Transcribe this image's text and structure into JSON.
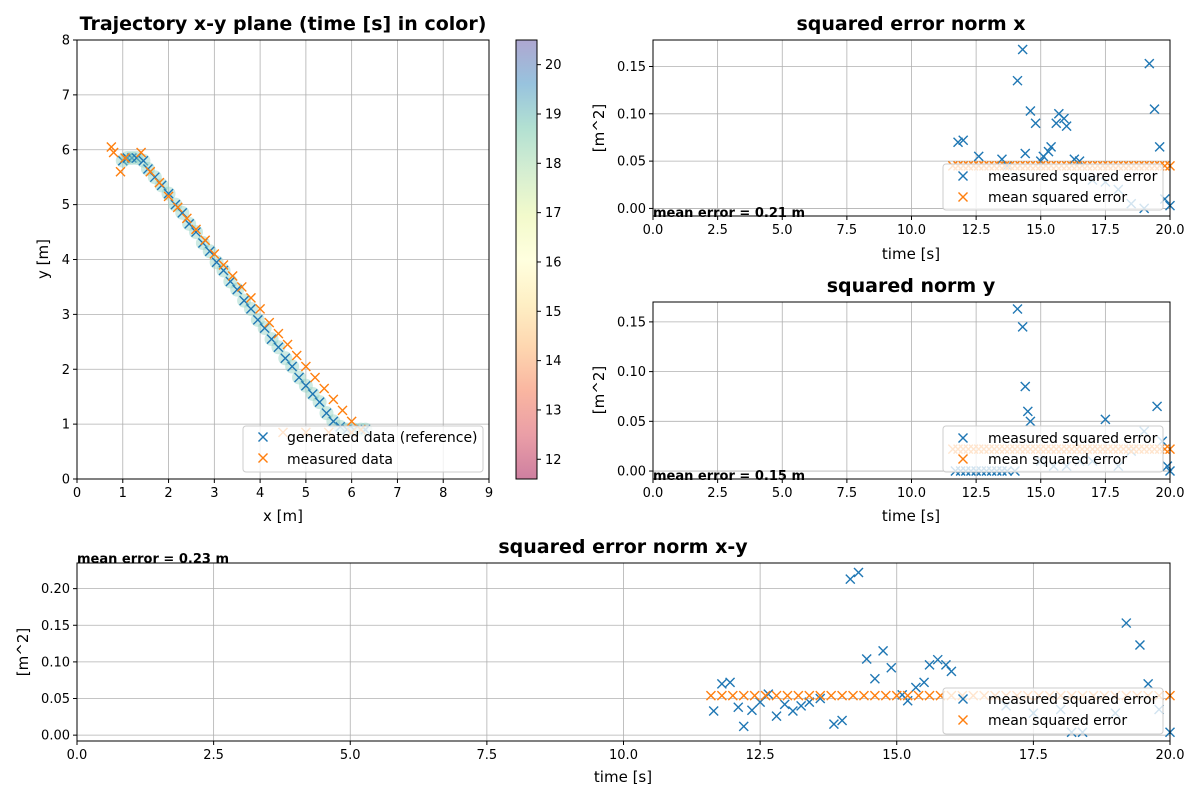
{
  "colors": {
    "reference": "#1f77b4",
    "measured": "#ff7f0e",
    "grid": "#b0b0b0"
  },
  "chart_data": [
    {
      "id": "traj",
      "type": "scatter",
      "title": "Trajectory x-y plane  (time [s] in color)",
      "xlabel": "x [m]",
      "ylabel": "y [m]",
      "xlim": [
        0,
        9
      ],
      "ylim": [
        0,
        8
      ],
      "xticks": [
        "0",
        "1",
        "2",
        "3",
        "4",
        "5",
        "6",
        "7",
        "8",
        "9"
      ],
      "yticks": [
        "0",
        "1",
        "2",
        "3",
        "4",
        "5",
        "6",
        "7",
        "8"
      ],
      "grid": true,
      "legend_placement": "lower-right",
      "legend": [
        "generated data (reference)",
        "measured data"
      ],
      "colorbar": {
        "label": "",
        "range": [
          11.6,
          20.5
        ],
        "ticks": [
          "12",
          "13",
          "14",
          "15",
          "16",
          "17",
          "18",
          "19",
          "20"
        ],
        "colormap": "Spectral"
      },
      "series": [
        {
          "name": "generated data (reference)",
          "marker": "x",
          "x": [
            1.0,
            1.1,
            1.2,
            1.3,
            1.45,
            1.55,
            1.7,
            1.85,
            2.0,
            2.15,
            2.3,
            2.45,
            2.6,
            2.75,
            2.9,
            3.05,
            3.2,
            3.35,
            3.5,
            3.65,
            3.8,
            3.95,
            4.1,
            4.25,
            4.4,
            4.55,
            4.7,
            4.85,
            5.0,
            5.15,
            5.3,
            5.45,
            5.6,
            5.75,
            5.9,
            6.05,
            6.2,
            6.3
          ],
          "y": [
            5.8,
            5.85,
            5.85,
            5.85,
            5.8,
            5.65,
            5.5,
            5.35,
            5.2,
            5.0,
            4.85,
            4.65,
            4.5,
            4.3,
            4.15,
            3.95,
            3.8,
            3.6,
            3.45,
            3.25,
            3.1,
            2.9,
            2.75,
            2.55,
            2.4,
            2.2,
            2.05,
            1.85,
            1.7,
            1.55,
            1.4,
            1.2,
            1.05,
            0.95,
            0.9,
            0.9,
            0.9,
            0.9
          ]
        },
        {
          "name": "measured data",
          "marker": "x",
          "x": [
            0.75,
            0.8,
            0.95,
            1.05,
            1.4,
            1.6,
            1.8,
            2.0,
            2.2,
            2.4,
            2.6,
            2.8,
            3.0,
            3.2,
            3.4,
            3.6,
            3.8,
            4.0,
            4.2,
            4.4,
            4.6,
            4.8,
            5.0,
            5.2,
            5.4,
            5.6,
            5.8,
            6.0,
            6.2,
            4.5,
            5.0,
            5.5,
            6.0
          ],
          "y": [
            6.05,
            5.95,
            5.6,
            5.85,
            5.95,
            5.6,
            5.4,
            5.15,
            4.95,
            4.75,
            4.55,
            4.35,
            4.1,
            3.9,
            3.7,
            3.5,
            3.3,
            3.1,
            2.85,
            2.65,
            2.45,
            2.25,
            2.05,
            1.85,
            1.65,
            1.45,
            1.25,
            1.05,
            0.9,
            0.85,
            0.85,
            0.85,
            0.85
          ]
        }
      ]
    },
    {
      "id": "errx",
      "type": "scatter",
      "title": "squared error norm  x",
      "xlabel": "time [s]",
      "ylabel": "[m^2]",
      "xlim": [
        0,
        20
      ],
      "ylim": [
        -0.008,
        0.178
      ],
      "xticks": [
        "0.0",
        "2.5",
        "5.0",
        "7.5",
        "10.0",
        "12.5",
        "15.0",
        "17.5",
        "20.0"
      ],
      "xtick_values": [
        0,
        2.5,
        5,
        7.5,
        10,
        12.5,
        15,
        17.5,
        20
      ],
      "yticks": [
        "0.00",
        "0.05",
        "0.10",
        "0.15"
      ],
      "ytick_values": [
        0,
        0.05,
        0.1,
        0.15
      ],
      "grid": true,
      "legend_placement": "lower-right",
      "legend": [
        "measured squared error",
        "mean squared error"
      ],
      "annotation": "mean error = 0.21 m",
      "series": [
        {
          "name": "measured squared error",
          "marker": "x",
          "x": [
            11.8,
            12.0,
            12.6,
            13.5,
            13.7,
            14.1,
            14.3,
            14.4,
            14.6,
            14.8,
            15.0,
            15.1,
            15.3,
            15.4,
            15.6,
            15.7,
            15.9,
            16.0,
            16.3,
            16.5,
            17.0,
            17.5,
            18.0,
            18.5,
            19.0,
            19.2,
            19.4,
            19.6,
            19.8,
            20.0
          ],
          "y": [
            0.07,
            0.072,
            0.055,
            0.052,
            0.045,
            0.135,
            0.168,
            0.058,
            0.103,
            0.09,
            0.05,
            0.055,
            0.06,
            0.065,
            0.09,
            0.1,
            0.095,
            0.087,
            0.052,
            0.05,
            0.03,
            0.028,
            0.02,
            0.005,
            0.0,
            0.153,
            0.105,
            0.065,
            0.01,
            0.003
          ]
        },
        {
          "name": "mean squared error",
          "marker": "x",
          "x": [
            11.6,
            11.8,
            12.0,
            12.2,
            12.4,
            12.6,
            12.8,
            13.0,
            13.2,
            13.4,
            13.6,
            13.8,
            14.0,
            14.2,
            14.4,
            14.6,
            14.8,
            15.0,
            15.2,
            15.4,
            15.6,
            15.8,
            16.0,
            16.2,
            16.4,
            16.6,
            16.8,
            17.0,
            17.2,
            17.4,
            17.6,
            17.8,
            18.0,
            18.2,
            18.4,
            18.6,
            18.8,
            19.0,
            19.2,
            19.4,
            19.6,
            19.8,
            20.0
          ],
          "y": [
            0.045,
            0.045,
            0.045,
            0.045,
            0.045,
            0.045,
            0.045,
            0.045,
            0.045,
            0.045,
            0.045,
            0.045,
            0.045,
            0.045,
            0.045,
            0.045,
            0.045,
            0.045,
            0.045,
            0.045,
            0.045,
            0.045,
            0.045,
            0.045,
            0.045,
            0.045,
            0.045,
            0.045,
            0.045,
            0.045,
            0.045,
            0.045,
            0.045,
            0.045,
            0.045,
            0.045,
            0.045,
            0.045,
            0.045,
            0.045,
            0.045,
            0.045,
            0.045
          ]
        }
      ]
    },
    {
      "id": "erry",
      "type": "scatter",
      "title": "squared norm  y",
      "xlabel": "time [s]",
      "ylabel": "[m^2]",
      "xlim": [
        0,
        20
      ],
      "ylim": [
        -0.008,
        0.17
      ],
      "xticks": [
        "0.0",
        "2.5",
        "5.0",
        "7.5",
        "10.0",
        "12.5",
        "15.0",
        "17.5",
        "20.0"
      ],
      "xtick_values": [
        0,
        2.5,
        5,
        7.5,
        10,
        12.5,
        15,
        17.5,
        20
      ],
      "yticks": [
        "0.00",
        "0.05",
        "0.10",
        "0.15"
      ],
      "ytick_values": [
        0,
        0.05,
        0.1,
        0.15
      ],
      "grid": true,
      "legend_placement": "lower-right",
      "legend": [
        "measured squared error",
        "mean squared error"
      ],
      "annotation": "mean error = 0.15 m",
      "series": [
        {
          "name": "measured squared error",
          "marker": "x",
          "x": [
            11.7,
            11.9,
            12.1,
            12.3,
            12.5,
            12.7,
            12.9,
            13.1,
            13.3,
            13.5,
            13.7,
            14.0,
            14.1,
            14.3,
            14.4,
            14.5,
            14.6,
            15.0,
            15.5,
            16.0,
            16.5,
            17.0,
            17.5,
            18.0,
            18.5,
            19.0,
            19.5,
            19.7,
            19.9,
            20.0
          ],
          "y": [
            0.0,
            0.0,
            0.0,
            0.0,
            0.0,
            0.0,
            0.0,
            0.0,
            0.0,
            0.0,
            0.0,
            0.0,
            0.163,
            0.145,
            0.085,
            0.06,
            0.05,
            0.01,
            0.005,
            0.005,
            0.01,
            0.01,
            0.052,
            0.005,
            0.02,
            0.04,
            0.065,
            0.03,
            0.005,
            0.0
          ]
        },
        {
          "name": "mean squared error",
          "marker": "x",
          "x": [
            11.6,
            11.8,
            12.0,
            12.2,
            12.4,
            12.6,
            12.8,
            13.0,
            13.2,
            13.4,
            13.6,
            13.8,
            14.0,
            14.2,
            14.4,
            14.6,
            14.8,
            15.0,
            15.2,
            15.4,
            15.6,
            15.8,
            16.0,
            16.2,
            16.4,
            16.6,
            16.8,
            17.0,
            17.2,
            17.4,
            17.6,
            17.8,
            18.0,
            18.2,
            18.4,
            18.6,
            18.8,
            19.0,
            19.2,
            19.4,
            19.6,
            19.8,
            20.0
          ],
          "y": [
            0.022,
            0.022,
            0.022,
            0.022,
            0.022,
            0.022,
            0.022,
            0.022,
            0.022,
            0.022,
            0.022,
            0.022,
            0.022,
            0.022,
            0.022,
            0.022,
            0.022,
            0.022,
            0.022,
            0.022,
            0.022,
            0.022,
            0.022,
            0.022,
            0.022,
            0.022,
            0.022,
            0.022,
            0.022,
            0.022,
            0.022,
            0.022,
            0.022,
            0.022,
            0.022,
            0.022,
            0.022,
            0.022,
            0.022,
            0.022,
            0.022,
            0.022,
            0.022
          ]
        }
      ]
    },
    {
      "id": "errxy",
      "type": "scatter",
      "title": "squared error norm  x-y",
      "xlabel": "time [s]",
      "ylabel": "[m^2]",
      "xlim": [
        0,
        20
      ],
      "ylim": [
        -0.008,
        0.235
      ],
      "xticks": [
        "0.0",
        "2.5",
        "5.0",
        "7.5",
        "10.0",
        "12.5",
        "15.0",
        "17.5",
        "20.0"
      ],
      "xtick_values": [
        0,
        2.5,
        5,
        7.5,
        10,
        12.5,
        15,
        17.5,
        20
      ],
      "yticks": [
        "0.00",
        "0.05",
        "0.10",
        "0.15",
        "0.20"
      ],
      "ytick_values": [
        0,
        0.05,
        0.1,
        0.15,
        0.2
      ],
      "grid": true,
      "legend_placement": "lower-right",
      "legend": [
        "measured squared error",
        "mean squared error"
      ],
      "annotation": "mean error = 0.23 m",
      "series": [
        {
          "name": "measured squared error",
          "marker": "x",
          "x": [
            11.65,
            11.8,
            11.95,
            12.1,
            12.2,
            12.35,
            12.5,
            12.65,
            12.8,
            12.95,
            13.1,
            13.25,
            13.4,
            13.6,
            13.85,
            14.0,
            14.15,
            14.3,
            14.45,
            14.6,
            14.75,
            14.9,
            15.1,
            15.2,
            15.35,
            15.5,
            15.6,
            15.75,
            15.9,
            16.0,
            17.0,
            17.5,
            18.0,
            18.2,
            18.4,
            19.0,
            19.2,
            19.45,
            19.6,
            19.8,
            20.0
          ],
          "y": [
            0.033,
            0.07,
            0.072,
            0.038,
            0.012,
            0.034,
            0.045,
            0.056,
            0.026,
            0.042,
            0.033,
            0.04,
            0.045,
            0.05,
            0.015,
            0.02,
            0.213,
            0.222,
            0.104,
            0.077,
            0.115,
            0.092,
            0.055,
            0.047,
            0.065,
            0.072,
            0.096,
            0.103,
            0.096,
            0.087,
            0.04,
            0.03,
            0.035,
            0.004,
            0.004,
            0.03,
            0.153,
            0.123,
            0.07,
            0.035,
            0.004
          ]
        },
        {
          "name": "mean squared error",
          "marker": "x",
          "x": [
            11.6,
            11.8,
            12.0,
            12.2,
            12.4,
            12.6,
            12.8,
            13.0,
            13.2,
            13.4,
            13.6,
            13.8,
            14.0,
            14.2,
            14.4,
            14.6,
            14.8,
            15.0,
            15.2,
            15.4,
            15.6,
            15.8,
            16.0,
            16.2,
            16.4,
            16.6,
            16.8,
            17.0,
            17.2,
            17.4,
            17.6,
            17.8,
            18.0,
            18.2,
            18.4,
            18.6,
            18.8,
            19.0,
            19.2,
            19.4,
            19.6,
            19.8,
            20.0
          ],
          "y": [
            0.054,
            0.054,
            0.054,
            0.054,
            0.054,
            0.054,
            0.054,
            0.054,
            0.054,
            0.054,
            0.054,
            0.054,
            0.054,
            0.054,
            0.054,
            0.054,
            0.054,
            0.054,
            0.054,
            0.054,
            0.054,
            0.054,
            0.054,
            0.054,
            0.054,
            0.054,
            0.054,
            0.054,
            0.054,
            0.054,
            0.054,
            0.054,
            0.054,
            0.054,
            0.054,
            0.054,
            0.054,
            0.054,
            0.054,
            0.054,
            0.054,
            0.054,
            0.054
          ]
        }
      ]
    }
  ]
}
